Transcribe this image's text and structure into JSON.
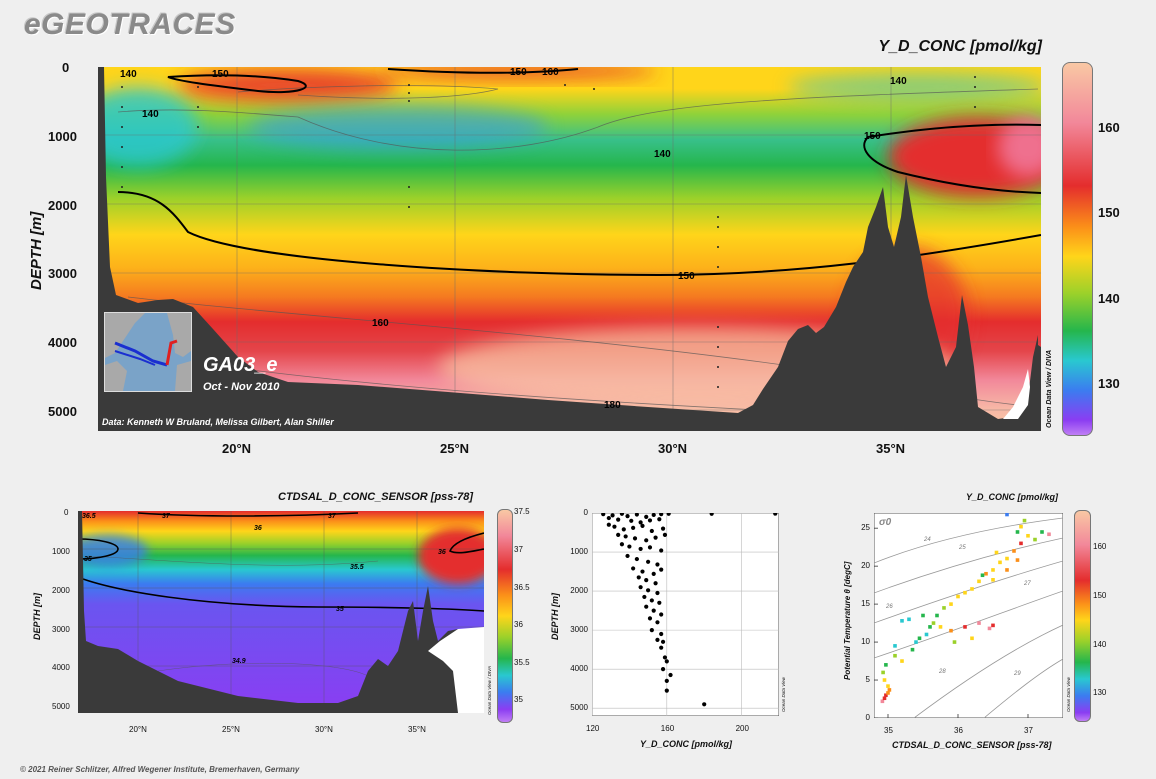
{
  "app": {
    "logo": "eGEOTRACES",
    "footer": "© 2021 Reiner Schlitzer, Alfred Wegener Institute, Bremerhaven, Germany"
  },
  "colors": {
    "scale": [
      "#8b3df2",
      "#3b7cf0",
      "#29c8d0",
      "#25b64c",
      "#9bd12a",
      "#ffd51a",
      "#fb8f19",
      "#e42d2d",
      "#f2889a",
      "#f9c8a4"
    ],
    "topo": "#3a3a3a"
  },
  "main": {
    "title": "Y_D_CONC [pmol/kg]",
    "ylabel": "DEPTH [m]",
    "yticks": [
      "0",
      "1000",
      "2000",
      "3000",
      "4000",
      "5000"
    ],
    "xticks": [
      "20°N",
      "25°N",
      "30°N",
      "35°N"
    ],
    "colorbar_ticks": [
      "160",
      "150",
      "140",
      "130"
    ],
    "contour_labels": [
      "140",
      "150",
      "150",
      "160",
      "140",
      "140",
      "150",
      "140",
      "150",
      "160",
      "180"
    ],
    "section_name": "GA03_e",
    "cruise_dates": "Oct - Nov 2010",
    "credit": "Data: Kenneth W Bruland, Melissa Gilbert, Alan Shiller",
    "software": "Ocean Data View / DIVA"
  },
  "salinity": {
    "title": "CTDSAL_D_CONC_SENSOR [pss-78]",
    "ylabel": "DEPTH [m]",
    "yticks": [
      "0",
      "1000",
      "2000",
      "3000",
      "4000",
      "5000"
    ],
    "xticks": [
      "20°N",
      "25°N",
      "30°N",
      "35°N"
    ],
    "colorbar_ticks": [
      "37.5",
      "37",
      "36.5",
      "36",
      "35.5",
      "35"
    ],
    "contour_labels": [
      "36.5",
      "37",
      "37",
      "36",
      "35",
      "35.5",
      "36",
      "35",
      "34.9"
    ],
    "software": "Ocean Data View / DIVA"
  },
  "profile": {
    "xlabel": "Y_D_CONC [pmol/kg]",
    "ylabel": "DEPTH [m]",
    "software": "Ocean Data View"
  },
  "ts": {
    "title": "Y_D_CONC [pmol/kg]",
    "xlabel": "CTDSAL_D_CONC_SENSOR [pss-78]",
    "ylabel": "Potential Temperature θ [degC]",
    "sigma_label": "σ0",
    "isopycnal_labels": [
      "24",
      "25",
      "26",
      "27",
      "28",
      "29"
    ],
    "colorbar_ticks": [
      "160",
      "150",
      "140",
      "130"
    ],
    "software": "Ocean Data View"
  },
  "chart_data": [
    {
      "type": "heatmap",
      "title": "Y_D_CONC [pmol/kg]",
      "ylabel": "DEPTH [m]",
      "x_range_degN": [
        17,
        38.5
      ],
      "ylim": [
        5200,
        0
      ],
      "colorbar_range": [
        125,
        167
      ],
      "contour_levels": [
        140,
        150,
        160,
        180
      ]
    },
    {
      "type": "heatmap",
      "title": "CTDSAL_D_CONC_SENSOR [pss-78]",
      "ylabel": "DEPTH [m]",
      "x_range_degN": [
        17,
        38.5
      ],
      "ylim": [
        5300,
        0
      ],
      "colorbar_range": [
        34.8,
        37.5
      ],
      "contour_levels": [
        34.9,
        35,
        35.5,
        36,
        36.5,
        37
      ]
    },
    {
      "type": "scatter",
      "xlabel": "Y_D_CONC [pmol/kg]",
      "ylabel": "DEPTH [m]",
      "xlim": [
        120,
        220
      ],
      "ylim": [
        5200,
        0
      ],
      "xticks": [
        120,
        160,
        200
      ],
      "yticks": [
        0,
        1000,
        2000,
        3000,
        4000,
        5000
      ],
      "points": [
        [
          126,
          30
        ],
        [
          131,
          60
        ],
        [
          136,
          20
        ],
        [
          139,
          80
        ],
        [
          144,
          40
        ],
        [
          149,
          100
        ],
        [
          153,
          50
        ],
        [
          157,
          30
        ],
        [
          161,
          20
        ],
        [
          129,
          130
        ],
        [
          134,
          170
        ],
        [
          141,
          200
        ],
        [
          146,
          240
        ],
        [
          151,
          190
        ],
        [
          156,
          160
        ],
        [
          129,
          300
        ],
        [
          132,
          350
        ],
        [
          137,
          420
        ],
        [
          142,
          380
        ],
        [
          147,
          330
        ],
        [
          152,
          460
        ],
        [
          158,
          400
        ],
        [
          134,
          560
        ],
        [
          138,
          600
        ],
        [
          143,
          650
        ],
        [
          149,
          700
        ],
        [
          154,
          630
        ],
        [
          159,
          560
        ],
        [
          136,
          800
        ],
        [
          140,
          860
        ],
        [
          146,
          920
        ],
        [
          151,
          880
        ],
        [
          157,
          960
        ],
        [
          139,
          1100
        ],
        [
          144,
          1180
        ],
        [
          150,
          1250
        ],
        [
          155,
          1320
        ],
        [
          142,
          1420
        ],
        [
          147,
          1500
        ],
        [
          153,
          1560
        ],
        [
          157,
          1450
        ],
        [
          145,
          1650
        ],
        [
          149,
          1720
        ],
        [
          154,
          1800
        ],
        [
          146,
          1900
        ],
        [
          150,
          1980
        ],
        [
          155,
          2050
        ],
        [
          148,
          2150
        ],
        [
          152,
          2240
        ],
        [
          156,
          2300
        ],
        [
          149,
          2400
        ],
        [
          153,
          2500
        ],
        [
          157,
          2600
        ],
        [
          151,
          2700
        ],
        [
          155,
          2800
        ],
        [
          152,
          3000
        ],
        [
          157,
          3100
        ],
        [
          155,
          3250
        ],
        [
          158,
          3300
        ],
        [
          157,
          3450
        ],
        [
          159,
          3700
        ],
        [
          160,
          3800
        ],
        [
          158,
          4000
        ],
        [
          162,
          4150
        ],
        [
          160,
          4300
        ],
        [
          160,
          4550
        ],
        [
          180,
          4900
        ],
        [
          184,
          20
        ],
        [
          218,
          15
        ]
      ]
    },
    {
      "type": "scatter",
      "xlabel": "CTDSAL_D_CONC_SENSOR [pss-78]",
      "ylabel": "Potential Temperature θ [degC]",
      "xlim": [
        34.8,
        37.5
      ],
      "ylim": [
        0,
        27
      ],
      "xticks": [
        35,
        36,
        37
      ],
      "yticks": [
        0,
        5,
        10,
        15,
        20,
        25
      ],
      "color_by": "Y_D_CONC [pmol/kg]",
      "colorbar_range": [
        125,
        167
      ],
      "points": [
        [
          34.92,
          2.2,
          160
        ],
        [
          34.95,
          2.6,
          158
        ],
        [
          34.97,
          3.0,
          156
        ],
        [
          35.0,
          3.3,
          154
        ],
        [
          35.02,
          3.7,
          152
        ],
        [
          35.0,
          4.2,
          150
        ],
        [
          34.95,
          5.0,
          146
        ],
        [
          34.93,
          6.0,
          142
        ],
        [
          34.97,
          7.0,
          138
        ],
        [
          35.1,
          8.2,
          145
        ],
        [
          35.2,
          7.5,
          150
        ],
        [
          35.35,
          9.0,
          140
        ],
        [
          35.45,
          10.5,
          138
        ],
        [
          35.55,
          11.0,
          135
        ],
        [
          35.6,
          12.0,
          140
        ],
        [
          35.7,
          13.5,
          138
        ],
        [
          35.8,
          14.5,
          142
        ],
        [
          35.9,
          15.0,
          146
        ],
        [
          36.0,
          16.0,
          150
        ],
        [
          36.1,
          16.5,
          148
        ],
        [
          36.2,
          17.0,
          146
        ],
        [
          36.3,
          18.0,
          150
        ],
        [
          36.4,
          19.0,
          152
        ],
        [
          36.5,
          19.5,
          148
        ],
        [
          36.6,
          20.5,
          146
        ],
        [
          36.7,
          21.0,
          150
        ],
        [
          36.8,
          22.0,
          155
        ],
        [
          36.9,
          23.0,
          158
        ],
        [
          37.0,
          24.0,
          150
        ],
        [
          37.1,
          23.5,
          145
        ],
        [
          37.2,
          24.5,
          140
        ],
        [
          37.3,
          24.2,
          160
        ],
        [
          35.2,
          12.8,
          135
        ],
        [
          35.3,
          13.0,
          132
        ],
        [
          35.5,
          13.5,
          140
        ],
        [
          35.65,
          12.5,
          145
        ],
        [
          35.75,
          12.0,
          150
        ],
        [
          35.9,
          11.5,
          155
        ],
        [
          36.1,
          12.0,
          158
        ],
        [
          36.3,
          12.5,
          160
        ],
        [
          36.45,
          11.8,
          160
        ],
        [
          36.5,
          12.2,
          158
        ],
        [
          36.2,
          10.5,
          150
        ],
        [
          35.95,
          10.0,
          145
        ],
        [
          35.4,
          10.0,
          133
        ],
        [
          35.1,
          9.5,
          132
        ],
        [
          36.5,
          18.2,
          150
        ],
        [
          36.7,
          19.5,
          155
        ],
        [
          36.85,
          20.8,
          152
        ],
        [
          36.95,
          26.0,
          145
        ],
        [
          36.9,
          25.2,
          150
        ],
        [
          36.85,
          24.5,
          140
        ],
        [
          36.7,
          26.8,
          130
        ],
        [
          36.55,
          21.8,
          148
        ],
        [
          36.35,
          18.8,
          140
        ]
      ]
    }
  ]
}
